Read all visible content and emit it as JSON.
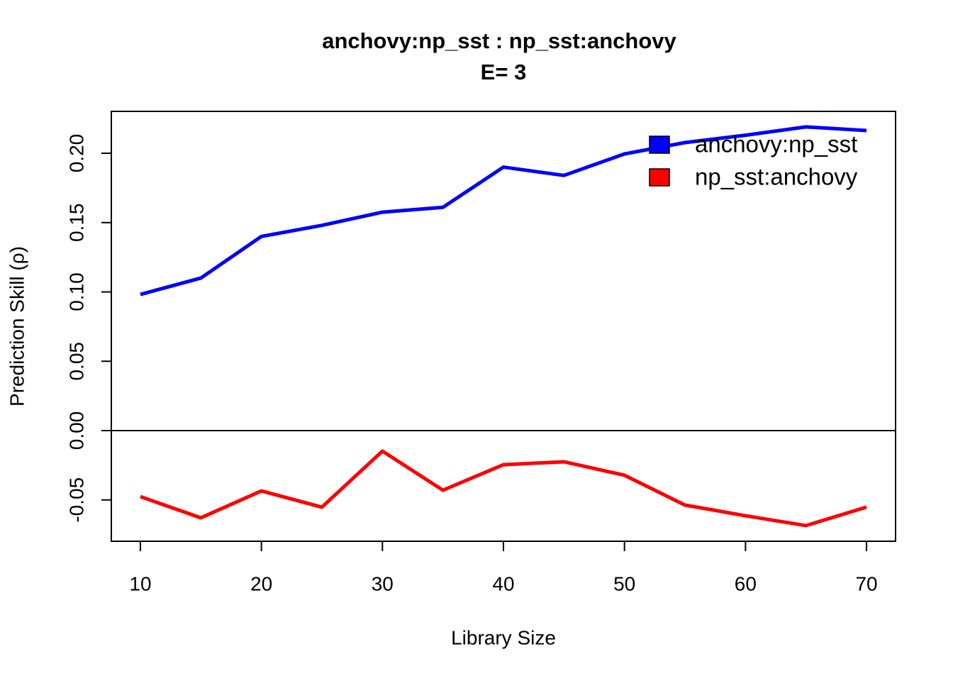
{
  "chart_data": {
    "type": "line",
    "title": "anchovy:np_sst  :  np_sst:anchovy",
    "subtitle": "E= 3",
    "x_label": "Library Size",
    "y_label": "Prediction Skill (ρ)",
    "x": [
      10,
      15,
      20,
      25,
      30,
      35,
      40,
      45,
      50,
      55,
      60,
      65,
      70
    ],
    "series": [
      {
        "name": "anchovy:np_sst",
        "color": "#0000ff",
        "values": [
          0.0982,
          0.11,
          0.14,
          0.148,
          0.1575,
          0.161,
          0.19,
          0.184,
          0.1995,
          0.2077,
          0.213,
          0.219,
          0.2164
        ]
      },
      {
        "name": "np_sst:anchovy",
        "color": "#ff0000",
        "values": [
          -0.0476,
          -0.0629,
          -0.0435,
          -0.0552,
          -0.0148,
          -0.043,
          -0.0246,
          -0.0225,
          -0.0322,
          -0.0537,
          -0.0614,
          -0.0685,
          -0.0552
        ]
      }
    ],
    "xlim": [
      7.6,
      72.4
    ],
    "ylim": [
      -0.0798,
      0.2302
    ],
    "xticks": [
      10,
      20,
      30,
      40,
      50,
      60,
      70
    ],
    "yticks": [
      {
        "value": -0.05,
        "label": "-0.05"
      },
      {
        "value": 0,
        "label": "0.00"
      },
      {
        "value": 0.05,
        "label": "0.05"
      },
      {
        "value": 0.1,
        "label": "0.10"
      },
      {
        "value": 0.15,
        "label": "0.15"
      },
      {
        "value": 0.2,
        "label": "0.20"
      }
    ],
    "hline": 0,
    "legend": "top-right",
    "grid": false
  }
}
